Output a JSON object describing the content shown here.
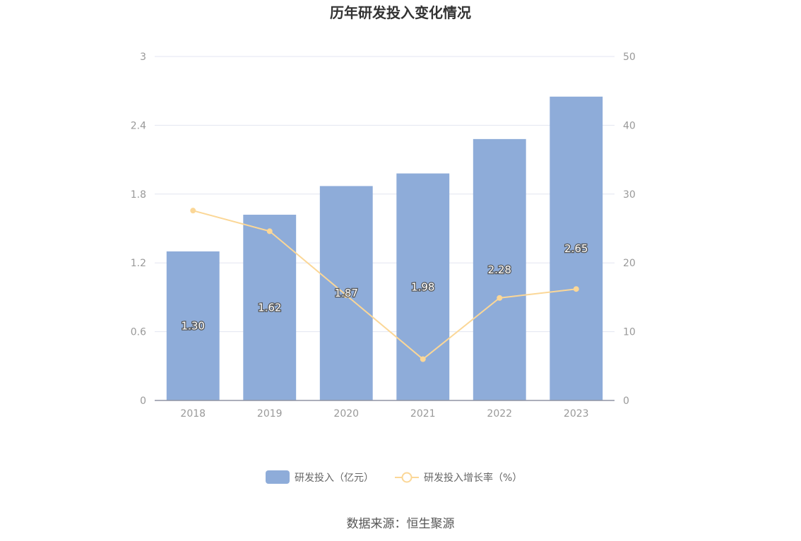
{
  "chart_data": {
    "type": "bar",
    "title": "历年研发投入变化情况",
    "categories": [
      "2018",
      "2019",
      "2020",
      "2021",
      "2022",
      "2023"
    ],
    "series": [
      {
        "name": "研发投入（亿元）",
        "type": "bar",
        "axis": "left",
        "color": "#8eacd9",
        "values": [
          1.3,
          1.62,
          1.87,
          1.98,
          2.28,
          2.65
        ],
        "labels": [
          "1.30",
          "1.62",
          "1.87",
          "1.98",
          "2.28",
          "2.65"
        ]
      },
      {
        "name": "研发投入增长率（%）",
        "type": "line",
        "axis": "right",
        "color": "#fbd797",
        "values": [
          27.6,
          24.6,
          15.3,
          6.0,
          14.9,
          16.2
        ]
      }
    ],
    "y_left": {
      "ylim": [
        0,
        3
      ],
      "ticks": [
        "0",
        "0.6",
        "1.2",
        "1.8",
        "2.4",
        "3"
      ]
    },
    "y_right": {
      "ylim": [
        0,
        50
      ],
      "ticks": [
        "0",
        "10",
        "20",
        "30",
        "40",
        "50"
      ]
    },
    "grid": true,
    "legend": "bottom"
  },
  "source": "数据来源：恒生聚源"
}
